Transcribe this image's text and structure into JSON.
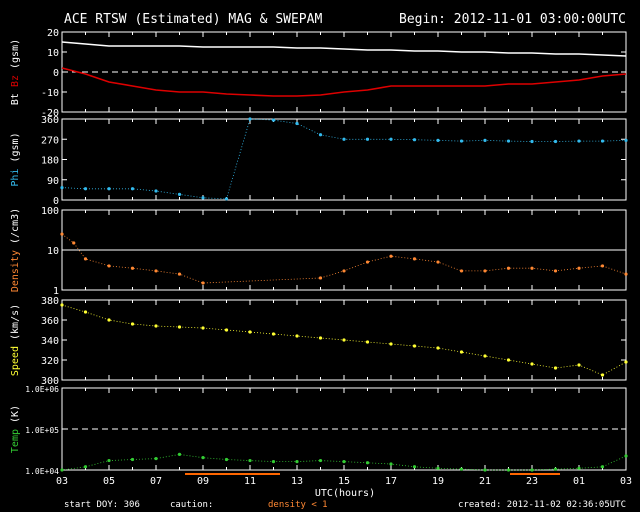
{
  "header": {
    "title": "ACE RTSW (Estimated) MAG & SWEPAM",
    "begin": "Begin: 2012-11-01 03:00:00UTC"
  },
  "footer": {
    "start_doy": "start DOY: 306",
    "caution": "caution:",
    "density_note": "density < 1",
    "created": "created: 2012-11-02 02:36:05UTC",
    "xlabel": "UTC(hours)"
  },
  "colors": {
    "bt": "#ffffff",
    "bz": "#dd0000",
    "phi": "#33bbee",
    "density": "#ff8833",
    "speed": "#ffff33",
    "temp": "#33cc33",
    "frame": "#ffffff",
    "caution_line": "#ff6600"
  },
  "chart_data": [
    {
      "type": "line",
      "ylabel": [
        "Bt",
        "Bz",
        "(gsm)"
      ],
      "ylim": [
        -20,
        20
      ],
      "yticks": [
        "20",
        "10",
        "0",
        "-10",
        "-20"
      ],
      "reference_line": 0,
      "x_hours": [
        0,
        1,
        2,
        3,
        4,
        5,
        6,
        7,
        8,
        9,
        10,
        11,
        12,
        13,
        14,
        15,
        16,
        17,
        18,
        19,
        20,
        21,
        22,
        23,
        24
      ],
      "series": [
        {
          "name": "Bt",
          "values": [
            15,
            14,
            13,
            13,
            13,
            13,
            12.5,
            12.5,
            12.5,
            12.5,
            12,
            12,
            11.5,
            11,
            11,
            10.5,
            10.5,
            10,
            10,
            9.5,
            9.5,
            9,
            9,
            8.5,
            8
          ]
        },
        {
          "name": "Bz",
          "values": [
            2,
            -1,
            -5,
            -7,
            -9,
            -10,
            -10,
            -11,
            -11.5,
            -12,
            -12,
            -11.5,
            -10,
            -9,
            -7,
            -7,
            -7,
            -7,
            -7,
            -6,
            -6,
            -5,
            -4,
            -2,
            -1
          ]
        }
      ]
    },
    {
      "type": "scatter",
      "ylabel": [
        "Phi",
        "(gsm)"
      ],
      "ylim": [
        0,
        360
      ],
      "yticks": [
        "360",
        "270",
        "180",
        "90",
        "0"
      ],
      "x_hours": [
        0,
        1,
        2,
        3,
        4,
        5,
        6,
        7,
        8,
        9,
        10,
        11,
        12,
        13,
        14,
        15,
        16,
        17,
        18,
        19,
        20,
        21,
        22,
        23,
        24
      ],
      "values": [
        55,
        50,
        50,
        50,
        40,
        25,
        10,
        5,
        360,
        355,
        340,
        290,
        270,
        270,
        270,
        268,
        265,
        262,
        265,
        262,
        260,
        260,
        262,
        262,
        265
      ]
    },
    {
      "type": "scatter",
      "ylabel": [
        "Density",
        "(/cm3)"
      ],
      "yscale": "log",
      "ylim": [
        1,
        100
      ],
      "yticks": [
        "100",
        "10",
        "1"
      ],
      "reference_line": 10,
      "x_hours": [
        0,
        0.5,
        1,
        2,
        3,
        4,
        5,
        6,
        7,
        8,
        9,
        10,
        11,
        12,
        13,
        14,
        15,
        16,
        17,
        18,
        19,
        20,
        21,
        22,
        23,
        24
      ],
      "values": [
        25,
        15,
        6,
        4,
        3.5,
        3,
        2.5,
        1.5,
        null,
        null,
        null,
        null,
        2,
        3,
        5,
        7,
        6,
        5,
        3,
        3,
        3.5,
        3.5,
        3,
        3.5,
        4,
        2.5
      ]
    },
    {
      "type": "scatter",
      "ylabel": [
        "Speed",
        "(km/s)"
      ],
      "ylim": [
        300,
        380
      ],
      "yticks": [
        "380",
        "360",
        "340",
        "320",
        "300"
      ],
      "x_hours": [
        0,
        1,
        2,
        3,
        4,
        5,
        6,
        7,
        8,
        9,
        10,
        11,
        12,
        13,
        14,
        15,
        16,
        17,
        18,
        19,
        20,
        21,
        22,
        23,
        24
      ],
      "values": [
        375,
        368,
        360,
        356,
        354,
        353,
        352,
        350,
        348,
        346,
        344,
        342,
        340,
        338,
        336,
        334,
        332,
        328,
        324,
        320,
        316,
        312,
        315,
        305,
        318
      ]
    },
    {
      "type": "scatter",
      "ylabel": [
        "Temp",
        "(K)"
      ],
      "yscale": "log",
      "ylim": [
        10000,
        1000000
      ],
      "yticks": [
        "1.0E+06",
        "1.0E+05",
        "1.0E+04"
      ],
      "reference_line": 100000,
      "x_hours": [
        0,
        1,
        2,
        3,
        4,
        5,
        6,
        7,
        8,
        9,
        10,
        11,
        12,
        13,
        14,
        15,
        16,
        17,
        18,
        19,
        20,
        21,
        22,
        23,
        24
      ],
      "values": [
        10000,
        12000,
        17000,
        18000,
        19000,
        24000,
        20000,
        18000,
        17000,
        16000,
        16000,
        17000,
        16000,
        15000,
        14000,
        12000,
        11000,
        10500,
        10000,
        10000,
        10000,
        10500,
        11000,
        12000,
        22000
      ]
    }
  ],
  "x_axis": {
    "labels": [
      "03",
      "05",
      "07",
      "09",
      "11",
      "13",
      "15",
      "17",
      "19",
      "21",
      "23",
      "01",
      "03"
    ]
  }
}
